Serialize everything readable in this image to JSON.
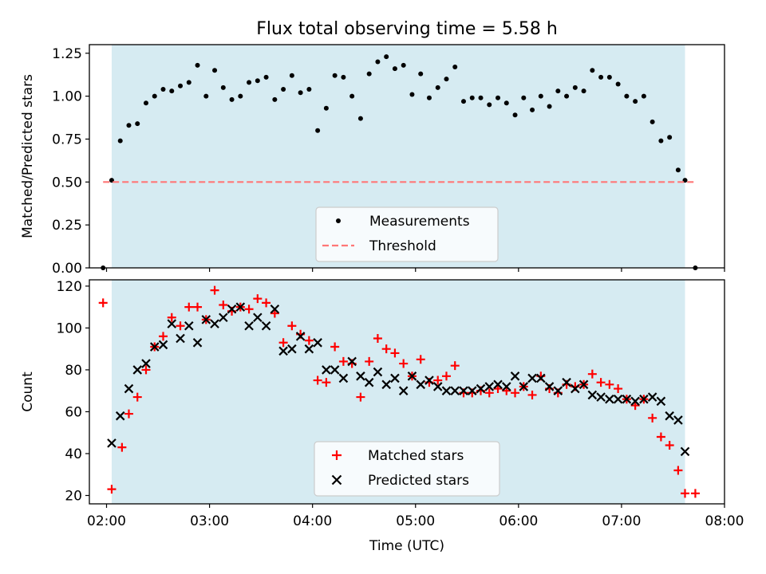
{
  "title": "Flux total observing time = 5.58 h",
  "chart_data": [
    {
      "type": "scatter",
      "ylabel": "Matched/Predicted stars",
      "ylim": [
        0,
        1.3
      ],
      "yticks": [
        "0.00",
        "0.25",
        "0.50",
        "0.75",
        "1.00",
        "1.25"
      ],
      "ytick_values": [
        0,
        0.25,
        0.5,
        0.75,
        1.0,
        1.25
      ],
      "xlim": [
        "01:50",
        "08:00"
      ],
      "shaded_interval": [
        "02:03",
        "07:37"
      ],
      "legend_location": "lower center",
      "series": [
        {
          "name": "Measurements",
          "marker": "dot",
          "color": "#000000",
          "x": [
            "01:58",
            "02:03",
            "02:08",
            "02:13",
            "02:18",
            "02:23",
            "02:28",
            "02:33",
            "02:38",
            "02:43",
            "02:48",
            "02:53",
            "02:58",
            "03:03",
            "03:08",
            "03:13",
            "03:18",
            "03:23",
            "03:28",
            "03:33",
            "03:38",
            "03:43",
            "03:48",
            "03:53",
            "03:58",
            "04:03",
            "04:08",
            "04:13",
            "04:18",
            "04:23",
            "04:28",
            "04:33",
            "04:38",
            "04:43",
            "04:48",
            "04:53",
            "04:58",
            "05:03",
            "05:08",
            "05:13",
            "05:18",
            "05:23",
            "05:28",
            "05:33",
            "05:38",
            "05:43",
            "05:48",
            "05:53",
            "05:58",
            "06:03",
            "06:08",
            "06:13",
            "06:18",
            "06:23",
            "06:28",
            "06:33",
            "06:38",
            "06:43",
            "06:48",
            "06:53",
            "06:58",
            "07:03",
            "07:08",
            "07:13",
            "07:18",
            "07:23",
            "07:28",
            "07:33",
            "07:37",
            "07:43"
          ],
          "y": [
            0.0,
            0.51,
            0.74,
            0.83,
            0.84,
            0.96,
            1.0,
            1.04,
            1.03,
            1.06,
            1.08,
            1.18,
            1.0,
            1.15,
            1.05,
            0.98,
            1.0,
            1.08,
            1.09,
            1.11,
            0.98,
            1.04,
            1.12,
            1.02,
            1.04,
            0.8,
            0.93,
            1.12,
            1.11,
            1.0,
            0.87,
            1.13,
            1.2,
            1.23,
            1.16,
            1.18,
            1.01,
            1.13,
            0.99,
            1.05,
            1.1,
            1.17,
            0.97,
            0.99,
            0.99,
            0.95,
            0.99,
            0.96,
            0.89,
            0.99,
            0.92,
            1.0,
            0.94,
            1.03,
            1.0,
            1.05,
            1.03,
            1.15,
            1.11,
            1.11,
            1.07,
            1.0,
            0.97,
            1.0,
            0.85,
            0.74,
            0.76,
            0.57,
            0.51,
            0.0
          ]
        },
        {
          "name": "Threshold",
          "style": "dashed",
          "color": "#ff7777",
          "x": [
            "01:58",
            "07:43"
          ],
          "y": [
            0.5,
            0.5
          ]
        }
      ]
    },
    {
      "type": "scatter",
      "xlabel": "Time (UTC)",
      "ylabel": "Count",
      "ylim": [
        16,
        123
      ],
      "yticks": [
        "20",
        "40",
        "60",
        "80",
        "100",
        "120"
      ],
      "ytick_values": [
        20,
        40,
        60,
        80,
        100,
        120
      ],
      "xlim": [
        "01:50",
        "08:00"
      ],
      "xticks": [
        "02:00",
        "03:00",
        "04:00",
        "05:00",
        "06:00",
        "07:00",
        "08:00"
      ],
      "shaded_interval": [
        "02:03",
        "07:37"
      ],
      "legend_location": "lower center",
      "series": [
        {
          "name": "Matched stars",
          "marker": "plus",
          "color": "#ff0000",
          "x": [
            "01:58",
            "02:03",
            "02:09",
            "02:13",
            "02:18",
            "02:23",
            "02:28",
            "02:33",
            "02:38",
            "02:43",
            "02:48",
            "02:53",
            "02:58",
            "03:03",
            "03:08",
            "03:13",
            "03:18",
            "03:23",
            "03:28",
            "03:33",
            "03:38",
            "03:43",
            "03:48",
            "03:53",
            "03:58",
            "04:03",
            "04:08",
            "04:13",
            "04:18",
            "04:23",
            "04:28",
            "04:33",
            "04:38",
            "04:43",
            "04:48",
            "04:53",
            "04:58",
            "05:03",
            "05:08",
            "05:13",
            "05:18",
            "05:23",
            "05:28",
            "05:33",
            "05:38",
            "05:43",
            "05:48",
            "05:53",
            "05:58",
            "06:03",
            "06:08",
            "06:13",
            "06:18",
            "06:23",
            "06:28",
            "06:33",
            "06:38",
            "06:43",
            "06:48",
            "06:53",
            "06:58",
            "07:03",
            "07:08",
            "07:13",
            "07:18",
            "07:23",
            "07:28",
            "07:33",
            "07:37",
            "07:43"
          ],
          "y": [
            112,
            23,
            43,
            59,
            67,
            80,
            91,
            96,
            105,
            101,
            110,
            110,
            104,
            118,
            111,
            108,
            110,
            109,
            114,
            112,
            107,
            93,
            101,
            97,
            94,
            75,
            74,
            91,
            84,
            83,
            67,
            84,
            95,
            90,
            88,
            83,
            77,
            85,
            74,
            75,
            77,
            82,
            69,
            69,
            70,
            69,
            71,
            70,
            69,
            72,
            68,
            77,
            71,
            69,
            73,
            72,
            73,
            78,
            74,
            73,
            71,
            66,
            63,
            66,
            57,
            48,
            44,
            32,
            21,
            21
          ]
        },
        {
          "name": "Predicted stars",
          "marker": "x",
          "color": "#000000",
          "x": [
            "02:03",
            "02:08",
            "02:13",
            "02:18",
            "02:23",
            "02:28",
            "02:33",
            "02:38",
            "02:43",
            "02:48",
            "02:53",
            "02:58",
            "03:03",
            "03:08",
            "03:13",
            "03:18",
            "03:23",
            "03:28",
            "03:33",
            "03:38",
            "03:43",
            "03:48",
            "03:53",
            "03:58",
            "04:03",
            "04:08",
            "04:13",
            "04:18",
            "04:23",
            "04:28",
            "04:33",
            "04:38",
            "04:43",
            "04:48",
            "04:53",
            "04:58",
            "05:03",
            "05:08",
            "05:13",
            "05:18",
            "05:23",
            "05:28",
            "05:33",
            "05:38",
            "05:43",
            "05:48",
            "05:53",
            "05:58",
            "06:03",
            "06:08",
            "06:13",
            "06:18",
            "06:23",
            "06:28",
            "06:33",
            "06:38",
            "06:43",
            "06:48",
            "06:53",
            "06:58",
            "07:03",
            "07:08",
            "07:13",
            "07:18",
            "07:23",
            "07:28",
            "07:33",
            "07:37"
          ],
          "y": [
            45,
            58,
            71,
            80,
            83,
            91,
            92,
            102,
            95,
            101,
            93,
            104,
            102,
            105,
            109,
            110,
            101,
            105,
            101,
            109,
            89,
            90,
            96,
            90,
            93,
            80,
            80,
            76,
            84,
            77,
            74,
            79,
            73,
            76,
            70,
            77,
            73,
            75,
            72,
            70,
            70,
            70,
            70,
            71,
            72,
            73,
            72,
            77,
            72,
            76,
            76,
            72,
            70,
            74,
            71,
            73,
            68,
            67,
            66,
            66,
            66,
            65,
            66,
            67,
            65,
            58,
            56,
            41
          ]
        }
      ]
    }
  ]
}
